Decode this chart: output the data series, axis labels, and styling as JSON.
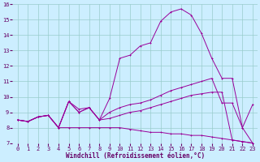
{
  "xlabel": "Windchill (Refroidissement éolien,°C)",
  "x_values": [
    0,
    1,
    2,
    3,
    4,
    5,
    6,
    7,
    8,
    9,
    10,
    11,
    12,
    13,
    14,
    15,
    16,
    17,
    18,
    19,
    20,
    21,
    22,
    23
  ],
  "line_top": [
    8.5,
    8.4,
    8.7,
    8.8,
    8.0,
    9.7,
    9.2,
    9.3,
    8.5,
    9.9,
    12.5,
    12.7,
    13.3,
    13.5,
    14.9,
    15.5,
    15.7,
    15.3,
    14.1,
    12.5,
    11.2,
    11.2,
    8.0,
    7.0
  ],
  "line_mid_hi": [
    8.5,
    8.4,
    8.7,
    8.8,
    8.0,
    9.7,
    9.0,
    9.3,
    8.5,
    9.0,
    9.3,
    9.5,
    9.6,
    9.8,
    10.1,
    10.4,
    10.6,
    10.8,
    11.0,
    11.2,
    9.6,
    9.6,
    8.0,
    9.5
  ],
  "line_mid_lo": [
    8.5,
    8.4,
    8.7,
    8.8,
    8.0,
    9.7,
    9.0,
    9.3,
    8.5,
    8.6,
    8.8,
    9.0,
    9.1,
    9.3,
    9.5,
    9.7,
    9.9,
    10.1,
    10.2,
    10.3,
    10.3,
    7.2,
    7.1,
    7.0
  ],
  "line_bot": [
    8.5,
    8.4,
    8.7,
    8.8,
    8.0,
    8.0,
    8.0,
    8.0,
    8.0,
    8.0,
    8.0,
    7.9,
    7.8,
    7.7,
    7.7,
    7.6,
    7.6,
    7.5,
    7.5,
    7.4,
    7.3,
    7.2,
    7.1,
    7.0
  ],
  "line_color": "#990099",
  "bg_color": "#cceeff",
  "ylim_min": 7,
  "ylim_max": 16,
  "yticks": [
    7,
    8,
    9,
    10,
    11,
    12,
    13,
    14,
    15,
    16
  ],
  "xticks": [
    0,
    1,
    2,
    3,
    4,
    5,
    6,
    7,
    8,
    9,
    10,
    11,
    12,
    13,
    14,
    15,
    16,
    17,
    18,
    19,
    20,
    21,
    22,
    23
  ],
  "grid_color": "#99cccc",
  "xlabel_color": "#660066",
  "tick_color": "#660066",
  "xlabel_fontsize": 5.5,
  "tick_fontsize": 5.0,
  "linewidth": 0.7,
  "markersize": 2.0
}
